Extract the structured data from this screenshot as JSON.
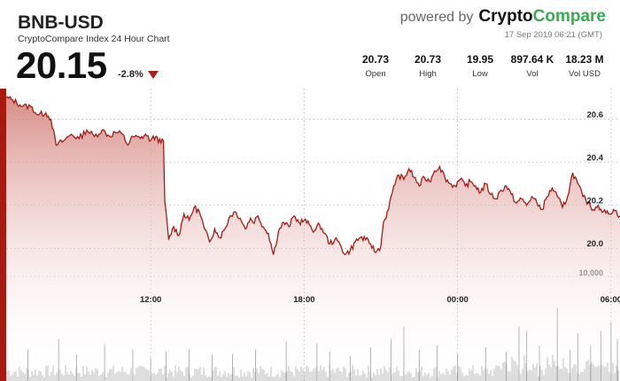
{
  "header": {
    "pair": "BNB-USD",
    "subtitle": "CryptoCompare Index 24 Hour Chart",
    "price": "20.15",
    "change": "-2.8%",
    "change_direction": "down",
    "powered_by": "powered by",
    "brand_part1": "Crypto",
    "brand_part2": "Compare",
    "timestamp": "17 Sep 2019 06:21 (GMT)",
    "stats": [
      {
        "value": "20.73",
        "label": "Open"
      },
      {
        "value": "20.73",
        "label": "High"
      },
      {
        "value": "19.95",
        "label": "Low"
      },
      {
        "value": "897.64 K",
        "label": "Vol"
      },
      {
        "value": "18.23 M",
        "label": "Vol USD"
      }
    ]
  },
  "colors": {
    "line": "#a71a12",
    "fill_top": "#cf7a72",
    "fill_bottom": "#ffffff",
    "volume": "#9a9a9a",
    "grid": "#999999",
    "brand_green": "#3aaa4e"
  },
  "chart_data": {
    "type": "area",
    "y_ticks": [
      {
        "value": 20.0,
        "label": "20.0"
      },
      {
        "value": 20.2,
        "label": "20.2"
      },
      {
        "value": 20.4,
        "label": "20.4"
      },
      {
        "value": 20.6,
        "label": "20.6"
      }
    ],
    "x_ticks": [
      {
        "hour": 12,
        "label": "12:00"
      },
      {
        "hour": 18,
        "label": "18:00"
      },
      {
        "hour": 24,
        "label": "00:00"
      },
      {
        "hour": 30,
        "label": "06:00"
      }
    ],
    "x_range_hours": [
      6.35,
      30.35
    ],
    "y_range": [
      19.91,
      20.73
    ],
    "grid": true,
    "price_series": [
      [
        6.35,
        20.7
      ],
      [
        6.6,
        20.69
      ],
      [
        7.0,
        20.66
      ],
      [
        7.3,
        20.66
      ],
      [
        7.6,
        20.62
      ],
      [
        7.9,
        20.63
      ],
      [
        8.1,
        20.6
      ],
      [
        8.3,
        20.48
      ],
      [
        8.6,
        20.5
      ],
      [
        8.9,
        20.53
      ],
      [
        9.2,
        20.51
      ],
      [
        9.5,
        20.55
      ],
      [
        9.8,
        20.52
      ],
      [
        10.1,
        20.55
      ],
      [
        10.4,
        20.52
      ],
      [
        10.6,
        20.54
      ],
      [
        10.9,
        20.53
      ],
      [
        11.1,
        20.48
      ],
      [
        11.3,
        20.52
      ],
      [
        11.6,
        20.51
      ],
      [
        11.8,
        20.53
      ],
      [
        12.0,
        20.5
      ],
      [
        12.2,
        20.52
      ],
      [
        12.4,
        20.49
      ],
      [
        12.5,
        20.5
      ],
      [
        12.55,
        20.22
      ],
      [
        12.7,
        20.04
      ],
      [
        12.9,
        20.1
      ],
      [
        13.1,
        20.06
      ],
      [
        13.3,
        20.16
      ],
      [
        13.5,
        20.13
      ],
      [
        13.7,
        20.19
      ],
      [
        13.9,
        20.17
      ],
      [
        14.1,
        20.09
      ],
      [
        14.3,
        20.03
      ],
      [
        14.5,
        20.09
      ],
      [
        14.7,
        20.05
      ],
      [
        14.9,
        20.09
      ],
      [
        15.1,
        20.15
      ],
      [
        15.3,
        20.17
      ],
      [
        15.5,
        20.14
      ],
      [
        15.7,
        20.09
      ],
      [
        15.9,
        20.14
      ],
      [
        16.0,
        20.12
      ],
      [
        16.2,
        20.15
      ],
      [
        16.4,
        20.1
      ],
      [
        16.6,
        20.07
      ],
      [
        16.8,
        19.97
      ],
      [
        17.0,
        20.08
      ],
      [
        17.2,
        20.12
      ],
      [
        17.4,
        20.1
      ],
      [
        17.6,
        20.15
      ],
      [
        17.8,
        20.12
      ],
      [
        18.0,
        20.13
      ],
      [
        18.2,
        20.11
      ],
      [
        18.4,
        20.08
      ],
      [
        18.6,
        20.11
      ],
      [
        18.8,
        20.07
      ],
      [
        19.0,
        20.02
      ],
      [
        19.2,
        20.04
      ],
      [
        19.4,
        20.02
      ],
      [
        19.6,
        19.97
      ],
      [
        19.8,
        19.99
      ],
      [
        20.0,
        20.03
      ],
      [
        20.2,
        20.05
      ],
      [
        20.4,
        20.04
      ],
      [
        20.6,
        20.02
      ],
      [
        20.8,
        19.98
      ],
      [
        21.0,
        20.01
      ],
      [
        21.1,
        20.12
      ],
      [
        21.3,
        20.18
      ],
      [
        21.5,
        20.29
      ],
      [
        21.7,
        20.34
      ],
      [
        21.9,
        20.32
      ],
      [
        22.1,
        20.37
      ],
      [
        22.3,
        20.33
      ],
      [
        22.5,
        20.29
      ],
      [
        22.7,
        20.33
      ],
      [
        22.9,
        20.31
      ],
      [
        23.1,
        20.36
      ],
      [
        23.3,
        20.38
      ],
      [
        23.5,
        20.33
      ],
      [
        23.7,
        20.3
      ],
      [
        23.9,
        20.29
      ],
      [
        24.1,
        20.32
      ],
      [
        24.3,
        20.29
      ],
      [
        24.5,
        20.31
      ],
      [
        24.7,
        20.29
      ],
      [
        24.9,
        20.26
      ],
      [
        25.1,
        20.3
      ],
      [
        25.3,
        20.25
      ],
      [
        25.5,
        20.23
      ],
      [
        25.7,
        20.27
      ],
      [
        25.9,
        20.29
      ],
      [
        26.1,
        20.25
      ],
      [
        26.3,
        20.21
      ],
      [
        26.5,
        20.23
      ],
      [
        26.7,
        20.2
      ],
      [
        26.9,
        20.24
      ],
      [
        27.1,
        20.21
      ],
      [
        27.3,
        20.18
      ],
      [
        27.5,
        20.24
      ],
      [
        27.7,
        20.28
      ],
      [
        27.9,
        20.24
      ],
      [
        28.1,
        20.19
      ],
      [
        28.3,
        20.24
      ],
      [
        28.5,
        20.35
      ],
      [
        28.7,
        20.3
      ],
      [
        28.9,
        20.24
      ],
      [
        29.1,
        20.21
      ],
      [
        29.3,
        20.18
      ],
      [
        29.5,
        20.2
      ],
      [
        29.7,
        20.17
      ],
      [
        29.9,
        20.16
      ],
      [
        30.1,
        20.18
      ],
      [
        30.35,
        20.15
      ]
    ],
    "volume_series": [
      [
        7.2,
        30
      ],
      [
        8.4,
        40
      ],
      [
        9.1,
        25
      ],
      [
        10.2,
        35
      ],
      [
        11.3,
        30
      ],
      [
        12.0,
        22
      ],
      [
        12.6,
        28
      ],
      [
        13.5,
        30
      ],
      [
        14.4,
        25
      ],
      [
        15.2,
        26
      ],
      [
        16.1,
        30
      ],
      [
        17.3,
        38
      ],
      [
        18.5,
        36
      ],
      [
        19.0,
        28
      ],
      [
        19.8,
        24
      ],
      [
        20.6,
        32
      ],
      [
        21.4,
        40
      ],
      [
        21.9,
        52
      ],
      [
        22.5,
        30
      ],
      [
        23.2,
        34
      ],
      [
        24.0,
        26
      ],
      [
        25.1,
        32
      ],
      [
        25.9,
        28
      ],
      [
        26.4,
        52
      ],
      [
        26.7,
        48
      ],
      [
        27.2,
        34
      ],
      [
        27.9,
        70
      ],
      [
        28.4,
        30
      ],
      [
        28.7,
        46
      ],
      [
        29.2,
        34
      ],
      [
        29.6,
        48
      ],
      [
        30.0,
        56
      ],
      [
        30.25,
        40
      ]
    ],
    "volume_ticks": [
      {
        "value": 10000,
        "label": "10,000"
      }
    ]
  }
}
